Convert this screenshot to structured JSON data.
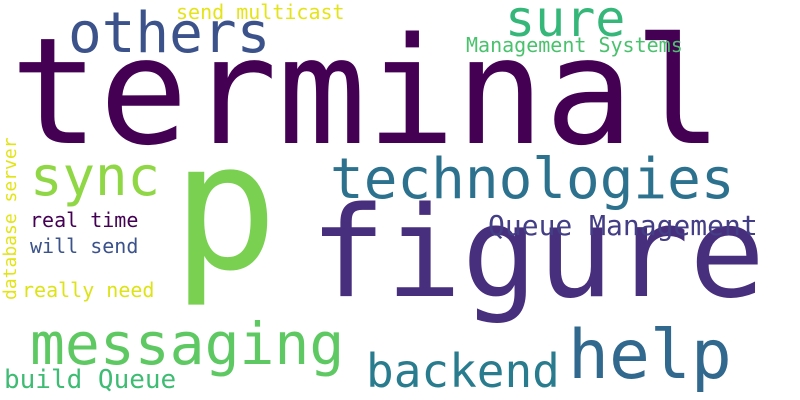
{
  "words": [
    {
      "key": "terminal",
      "text": "terminal",
      "color": "#440154"
    },
    {
      "key": "p",
      "text": "p",
      "color": "#7ad151"
    },
    {
      "key": "figure",
      "text": "figure",
      "color": "#472f7d"
    },
    {
      "key": "technologies",
      "text": "technologies",
      "color": "#2c728e"
    },
    {
      "key": "messaging",
      "text": "messaging",
      "color": "#5ec962"
    },
    {
      "key": "help",
      "text": "help",
      "color": "#31688e"
    },
    {
      "key": "backend",
      "text": "backend",
      "color": "#287c8e"
    },
    {
      "key": "others",
      "text": "others",
      "color": "#3b528b"
    },
    {
      "key": "sure",
      "text": "sure",
      "color": "#35b779"
    },
    {
      "key": "sync",
      "text": "sync",
      "color": "#8fd744"
    },
    {
      "key": "queue_management",
      "text": "Queue Management",
      "color": "#433e85"
    },
    {
      "key": "build_queue",
      "text": "build Queue",
      "color": "#3fbc73"
    },
    {
      "key": "management_systems",
      "text": "Management Systems",
      "color": "#4ac16d"
    },
    {
      "key": "send_multicast",
      "text": "send multicast",
      "color": "#e5e419"
    },
    {
      "key": "real_time",
      "text": "real time",
      "color": "#440154"
    },
    {
      "key": "will_send",
      "text": "will send",
      "color": "#3b528b"
    },
    {
      "key": "really_need",
      "text": "really need",
      "color": "#dde318"
    },
    {
      "key": "database_server",
      "text": "database server",
      "color": "#e3e418"
    }
  ]
}
